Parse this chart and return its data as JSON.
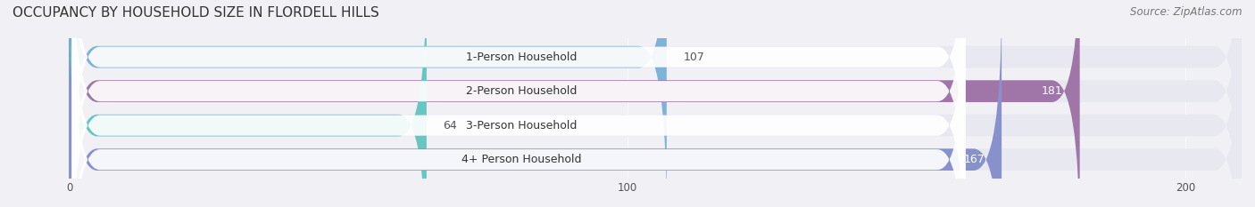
{
  "title": "OCCUPANCY BY HOUSEHOLD SIZE IN FLORDELL HILLS",
  "source": "Source: ZipAtlas.com",
  "categories": [
    "1-Person Household",
    "2-Person Household",
    "3-Person Household",
    "4+ Person Household"
  ],
  "values": [
    107,
    181,
    64,
    167
  ],
  "bar_colors": [
    "#7eb3d8",
    "#a076a8",
    "#68c5c0",
    "#8891cc"
  ],
  "label_colors": [
    "#555555",
    "#ffffff",
    "#555555",
    "#ffffff"
  ],
  "xlim": [
    -10,
    210
  ],
  "xticks": [
    0,
    100,
    200
  ],
  "background_color": "#f0f0f5",
  "bar_bg_color": "#e8e8f0",
  "title_fontsize": 11,
  "source_fontsize": 8.5,
  "label_fontsize": 9,
  "value_fontsize": 9
}
